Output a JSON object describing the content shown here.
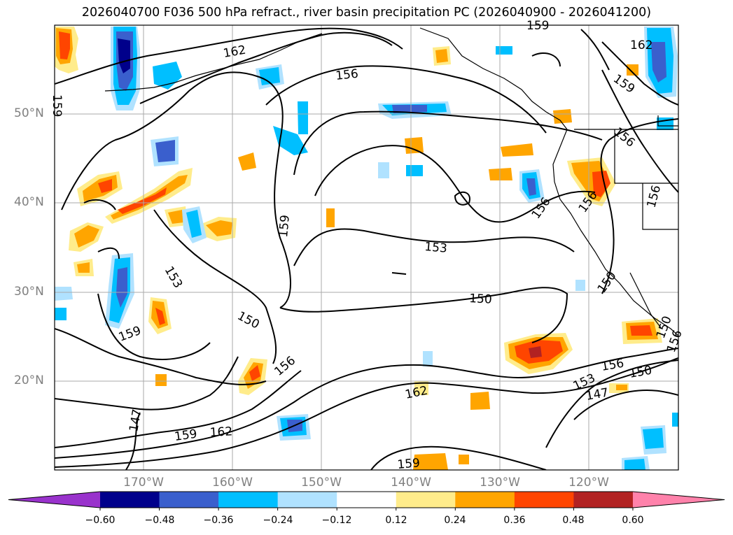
{
  "title": "2026040700 F036 500 hPa refract., river basin precipitation PC (2026040900 - 2026041200)",
  "lat_labels": [
    "50°N",
    "40°N",
    "30°N",
    "20°N"
  ],
  "lon_labels": [
    "170°W",
    "160°W",
    "150°W",
    "140°W",
    "130°W",
    "120°W"
  ],
  "colorbar": {
    "colors": [
      "#9932cc",
      "#00008b",
      "#3a5fcd",
      "#00bfff",
      "#b0e2ff",
      "#ffffff",
      "#ffec8b",
      "#ffa500",
      "#ff4500",
      "#b22222",
      "#ff82ab"
    ],
    "tick_labels": [
      "−0.60",
      "−0.48",
      "−0.36",
      "−0.24",
      "−0.12",
      "0.12",
      "0.24",
      "0.36",
      "0.48",
      "0.60"
    ]
  },
  "contour_labels": [
    "162",
    "156",
    "159",
    "159",
    "162",
    "159",
    "156",
    "156",
    "156",
    "156",
    "159",
    "153",
    "153",
    "150",
    "150",
    "150",
    "159",
    "156",
    "162",
    "156",
    "153",
    "150",
    "147",
    "147",
    "162",
    "159",
    "159",
    "150",
    "156"
  ]
}
